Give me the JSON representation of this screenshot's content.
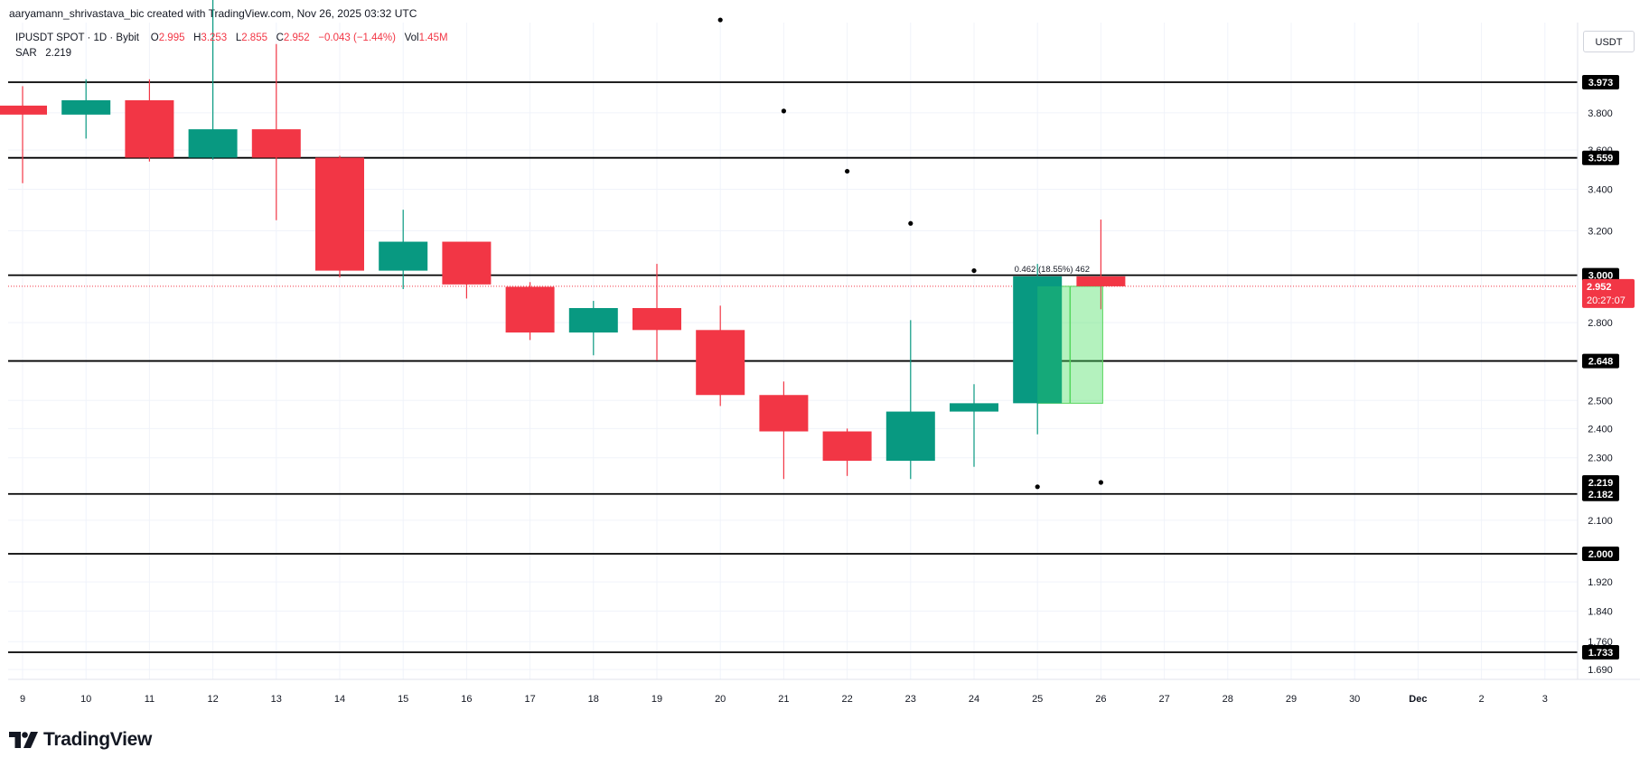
{
  "header": {
    "text": "aaryamann_shrivastava_bic created with TradingView.com, Nov 26, 2025 03:32 UTC"
  },
  "legend": {
    "symbol": "IPUSDT SPOT · 1D · Bybit",
    "o_label": "O",
    "o_value": "2.995",
    "h_label": "H",
    "h_value": "3.253",
    "l_label": "L",
    "l_value": "2.855",
    "c_label": "C",
    "c_value": "2.952",
    "change": "−0.043 (−1.44%)",
    "vol_label": "Vol",
    "vol_value": "1.45M",
    "sar_label": "SAR",
    "sar_value": "2.219"
  },
  "currency_button": {
    "label": "USDT"
  },
  "logo": {
    "text": "TradingView"
  },
  "chart_data": {
    "type": "candlestick",
    "colors": {
      "up": "#089981",
      "down": "#f23645",
      "grid": "#f0f3fa",
      "sar": "#000000",
      "price_line": "#f23645"
    },
    "y_axis": {
      "ticks": [
        "3.800",
        "3.600",
        "3.400",
        "3.200",
        "2.800",
        "2.500",
        "2.400",
        "2.300",
        "2.100",
        "1.920",
        "1.840",
        "1.760",
        "1.690"
      ]
    },
    "x_axis": {
      "ticks": [
        "9",
        "10",
        "11",
        "12",
        "13",
        "14",
        "15",
        "16",
        "17",
        "18",
        "19",
        "20",
        "21",
        "22",
        "23",
        "24",
        "25",
        "26",
        "27",
        "28",
        "29",
        "30",
        "Dec",
        "2",
        "3"
      ]
    },
    "candles": [
      {
        "date": "9",
        "open": 3.84,
        "high": 3.95,
        "low": 3.43,
        "close": 3.79
      },
      {
        "date": "10",
        "open": 3.79,
        "high": 3.99,
        "low": 3.66,
        "close": 3.87
      },
      {
        "date": "11",
        "open": 3.87,
        "high": 3.99,
        "low": 3.54,
        "close": 3.56
      },
      {
        "date": "12",
        "open": 3.56,
        "high": 4.5,
        "low": 3.55,
        "close": 3.71
      },
      {
        "date": "13",
        "open": 3.71,
        "high": 4.2,
        "low": 3.25,
        "close": 3.56
      },
      {
        "date": "14",
        "open": 3.56,
        "high": 3.57,
        "low": 2.99,
        "close": 3.02
      },
      {
        "date": "15",
        "open": 3.02,
        "high": 3.3,
        "low": 2.94,
        "close": 3.15
      },
      {
        "date": "16",
        "open": 3.15,
        "high": 3.15,
        "low": 2.9,
        "close": 2.96
      },
      {
        "date": "17",
        "open": 2.95,
        "high": 2.97,
        "low": 2.73,
        "close": 2.76
      },
      {
        "date": "18",
        "open": 2.76,
        "high": 2.89,
        "low": 2.67,
        "close": 2.86
      },
      {
        "date": "19",
        "open": 2.86,
        "high": 3.05,
        "low": 2.65,
        "close": 2.77
      },
      {
        "date": "20",
        "open": 2.77,
        "high": 2.87,
        "low": 2.48,
        "close": 2.52
      },
      {
        "date": "21",
        "open": 2.52,
        "high": 2.57,
        "low": 2.23,
        "close": 2.39
      },
      {
        "date": "22",
        "open": 2.39,
        "high": 2.4,
        "low": 2.24,
        "close": 2.29
      },
      {
        "date": "23",
        "open": 2.29,
        "high": 2.81,
        "low": 2.23,
        "close": 2.46
      },
      {
        "date": "24",
        "open": 2.46,
        "high": 2.56,
        "low": 2.27,
        "close": 2.49
      },
      {
        "date": "25",
        "open": 2.49,
        "high": 3.05,
        "low": 2.38,
        "close": 2.995
      },
      {
        "date": "26",
        "open": 2.995,
        "high": 3.253,
        "low": 2.855,
        "close": 2.952
      }
    ],
    "sar": [
      {
        "date": "20",
        "value": 4.35
      },
      {
        "date": "21",
        "value": 3.81
      },
      {
        "date": "22",
        "value": 3.49
      },
      {
        "date": "23",
        "value": 3.235
      },
      {
        "date": "24",
        "value": 3.02
      },
      {
        "date": "25",
        "value": 2.205
      },
      {
        "date": "26",
        "value": 2.219
      }
    ],
    "horizontal_levels": [
      "3.973",
      "3.559",
      "3.000",
      "2.648",
      "2.182",
      "2.000",
      "1.733"
    ],
    "badges": {
      "sar": "2.219",
      "last_price": "2.952",
      "countdown": "20:27:07"
    },
    "measure": {
      "start_date": "25",
      "end_date": "26",
      "from": 2.49,
      "to": 2.952,
      "label": "0.462 (18.55%) 462"
    }
  }
}
